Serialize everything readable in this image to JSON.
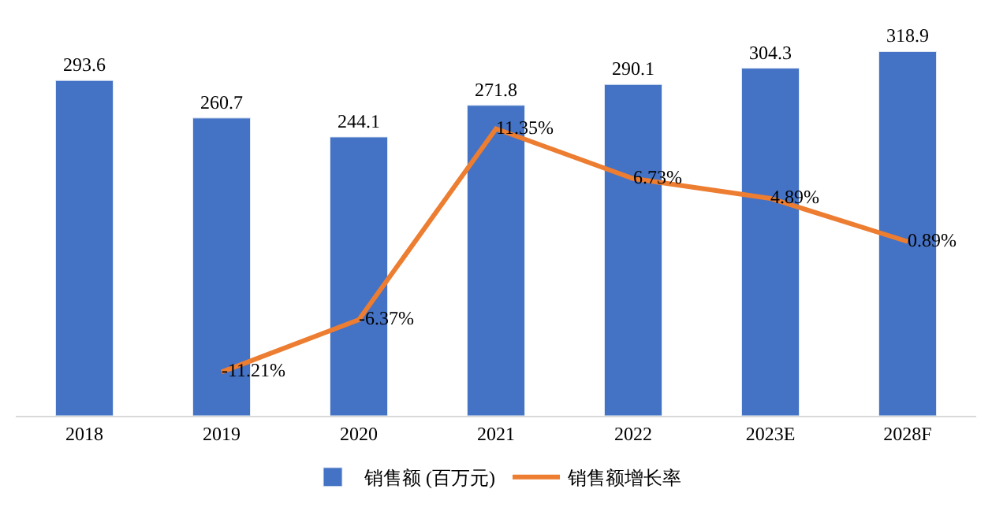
{
  "chart_data": {
    "type": "bar",
    "categories": [
      "2018",
      "2019",
      "2020",
      "2021",
      "2022",
      "2023E",
      "2028F"
    ],
    "series": [
      {
        "name": "销售额 (百万元)",
        "color": "#4472c4",
        "values": [
          293.6,
          260.7,
          244.1,
          271.8,
          290.1,
          304.3,
          318.9
        ]
      },
      {
        "name": "销售额增长率",
        "type": "line",
        "axis": "y2",
        "color": "#ed7d31",
        "values": [
          null,
          -11.21,
          -6.37,
          11.35,
          6.73,
          4.89,
          0.89
        ],
        "value_labels": [
          null,
          "-11.21%",
          "-6.37%",
          "11.35%",
          "6.73%",
          "4.89%",
          "0.89%"
        ]
      }
    ],
    "data_labels": true,
    "legend": "bottom",
    "grid": false,
    "marker": "none",
    "line_style": "solid",
    "tick_labels": "x"
  }
}
